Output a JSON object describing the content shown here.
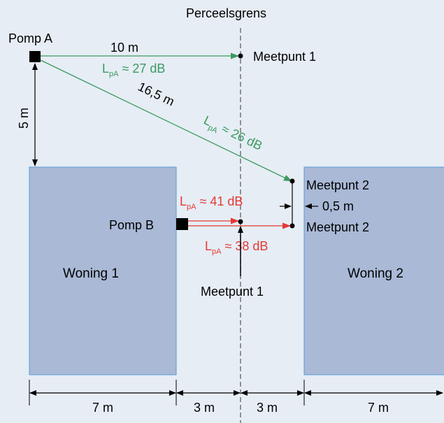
{
  "boundary_label": "Perceelsgrens",
  "pump_a": {
    "label": "Pomp A"
  },
  "pump_b": {
    "label": "Pomp B"
  },
  "houses": [
    {
      "label": "Woning 1"
    },
    {
      "label": "Woning 2"
    }
  ],
  "measurements": {
    "dist_a_mp1": "10 m",
    "dist_a_mp2": "16,5 m",
    "dist_a_vertical": "5 m",
    "offset_mp2": "0,5 m",
    "bottom_dims": [
      "7 m",
      "3 m",
      "3 m",
      "7 m"
    ]
  },
  "measure_points": {
    "mp1_top": "Meetpunt 1",
    "mp2_top": "Meetpunt 2",
    "mp2_bottom": "Meetpunt 2",
    "mp1_bottom": "Meetpunt 1"
  },
  "levels": {
    "prefix": "L",
    "subscript": "pA",
    "a_mp1": "≈ 27 dB",
    "a_mp2": "≈ 26 dB",
    "b_mp1": "≈ 41 dB",
    "b_mp2": "≈ 38 dB"
  },
  "colors": {
    "background": "#e6edf5",
    "house_fill": "#a9b9d6",
    "house_stroke": "#5b9bd5",
    "green": "#3c9a5f",
    "red": "#e53935",
    "dark": "#000000"
  }
}
